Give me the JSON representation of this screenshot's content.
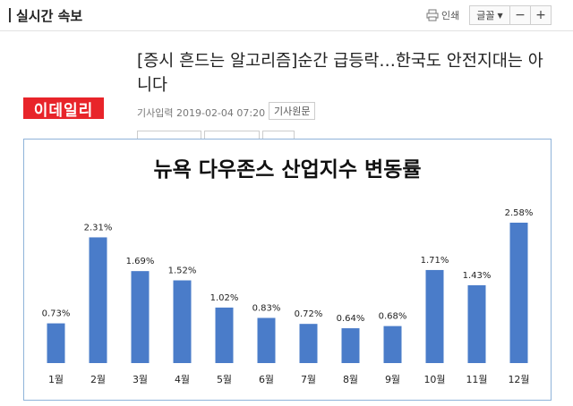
{
  "header": {
    "section_title": "실시간 속보",
    "print_label": "인쇄",
    "font_label": "글꼴",
    "font_decrease": "−",
    "font_increase": "+"
  },
  "article": {
    "logo_text": "이데일리",
    "headline": "[증시 흔드는 알고리즘]순간 급등락…한국도 안전지대는 아니다",
    "meta": "기사입력 2019-02-04 07:20",
    "source_button": "기사원문"
  },
  "chart_data": {
    "type": "bar",
    "title": "뉴욕 다우존스 산업지수 변동률",
    "categories": [
      "1월",
      "2월",
      "3월",
      "4월",
      "5월",
      "6월",
      "7월",
      "8월",
      "9월",
      "10월",
      "11월",
      "12월"
    ],
    "values": [
      0.73,
      2.31,
      1.69,
      1.52,
      1.02,
      0.83,
      0.72,
      0.64,
      0.68,
      1.71,
      1.43,
      2.58
    ],
    "value_labels": [
      "0.73%",
      "2.31%",
      "1.69%",
      "1.52%",
      "1.02%",
      "0.83%",
      "0.72%",
      "0.64%",
      "0.68%",
      "1.71%",
      "1.43%",
      "2.58%"
    ],
    "xlabel": "",
    "ylabel": "",
    "ylim": [
      0,
      2.58
    ],
    "bar_color": "#4a7cc9",
    "grid": false
  }
}
